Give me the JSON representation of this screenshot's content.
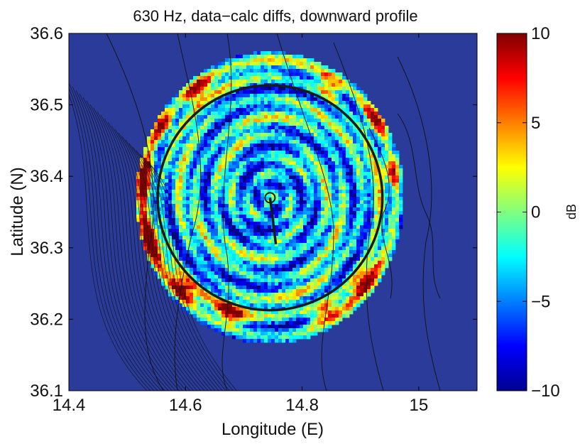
{
  "chart_data": {
    "type": "heatmap",
    "title": "630 Hz, data−calc diffs, downward profile",
    "xlabel": "Longitude (E)",
    "ylabel": "Latitude (N)",
    "xlim": [
      14.4,
      15.1
    ],
    "ylim": [
      36.1,
      36.6
    ],
    "xticks": [
      14.4,
      14.6,
      14.8,
      15.0
    ],
    "xtick_labels": [
      "14.4",
      "14.6",
      "14.8",
      "15"
    ],
    "yticks": [
      36.1,
      36.2,
      36.3,
      36.4,
      36.5,
      36.6
    ],
    "ytick_labels": [
      "36.1",
      "36.2",
      "36.3",
      "36.4",
      "36.5",
      "36.6"
    ],
    "colorbar": {
      "label": "dB",
      "range": [
        -10,
        10
      ],
      "ticks": [
        -10,
        -5,
        0,
        5,
        10
      ],
      "tick_labels": [
        "−10",
        "−5",
        "0",
        "5",
        "10"
      ],
      "colormap": "jet"
    },
    "source": {
      "lon": 14.745,
      "lat": 36.37
    },
    "receiver_track_end": {
      "lon": 14.755,
      "lat": 36.305
    },
    "data_disk_radius_deg": 0.255,
    "range_circle_radius_deg": 0.205,
    "background_value_db": -10,
    "colors": {
      "background": "#2b3b99",
      "contour": "#111111",
      "ring": "#1a1a1a"
    }
  }
}
